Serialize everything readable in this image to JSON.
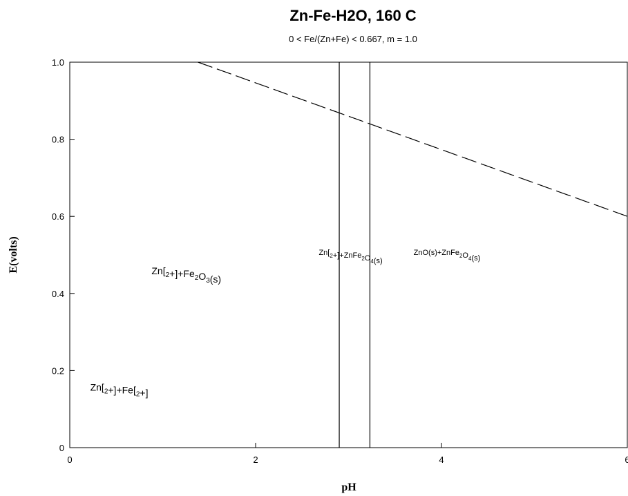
{
  "chart_data": {
    "type": "line",
    "title": "Zn-Fe-H2O, 160 C",
    "subtitle": "0 < Fe/(Zn+Fe) < 0.667, m = 1.0",
    "xlabel": "pH",
    "ylabel": "E(volts)",
    "xlim": [
      0,
      6
    ],
    "ylim": [
      0,
      1.0
    ],
    "grid": false,
    "x_ticks": [
      {
        "value": 0,
        "label": "0"
      },
      {
        "value": 2,
        "label": "2"
      },
      {
        "value": 4,
        "label": "4"
      },
      {
        "value": 6,
        "label": "6"
      }
    ],
    "y_ticks": [
      {
        "value": 0,
        "label": "0"
      },
      {
        "value": 0.2,
        "label": "0.2"
      },
      {
        "value": 0.4,
        "label": "0.4"
      },
      {
        "value": 0.6,
        "label": "0.6"
      },
      {
        "value": 0.8,
        "label": "0.8"
      },
      {
        "value": 1.0,
        "label": "1.0"
      }
    ],
    "series": [
      {
        "style": "dashed",
        "x": [
          1.38,
          6.0
        ],
        "y": [
          1.0,
          0.6
        ]
      },
      {
        "style": "solid",
        "x": [
          2.9,
          2.9
        ],
        "y": [
          0,
          1.0
        ]
      },
      {
        "style": "solid",
        "x": [
          3.23,
          3.23
        ],
        "y": [
          0,
          1.0
        ]
      }
    ],
    "regions": [
      {
        "x": 0.22,
        "y": 0.148,
        "size": "large",
        "parts": [
          {
            "t": "Zn["
          },
          {
            "t": "2",
            "sub": true
          },
          {
            "t": "+]+Fe["
          },
          {
            "t": "2",
            "sub": true
          },
          {
            "t": "+]"
          }
        ]
      },
      {
        "x": 0.88,
        "y": 0.45,
        "size": "large",
        "parts": [
          {
            "t": "Zn["
          },
          {
            "t": "2",
            "sub": true
          },
          {
            "t": "+]+Fe"
          },
          {
            "t": "2",
            "sub": true
          },
          {
            "t": "O"
          },
          {
            "t": "3",
            "sub": true
          },
          {
            "t": "(s)"
          }
        ]
      },
      {
        "x": 2.68,
        "y": 0.5,
        "size": "small",
        "parts": [
          {
            "t": "Zn["
          },
          {
            "t": "2",
            "sub": true
          },
          {
            "t": "+]+ZnFe"
          },
          {
            "t": "2",
            "sub": true
          },
          {
            "t": "O"
          },
          {
            "t": "4",
            "sub": true
          },
          {
            "t": "(s)"
          }
        ]
      },
      {
        "x": 3.7,
        "y": 0.5,
        "size": "small",
        "parts": [
          {
            "t": "ZnO(s)+ZnFe"
          },
          {
            "t": "2",
            "sub": true
          },
          {
            "t": "O"
          },
          {
            "t": "4",
            "sub": true
          },
          {
            "t": "(s)"
          }
        ]
      }
    ]
  }
}
